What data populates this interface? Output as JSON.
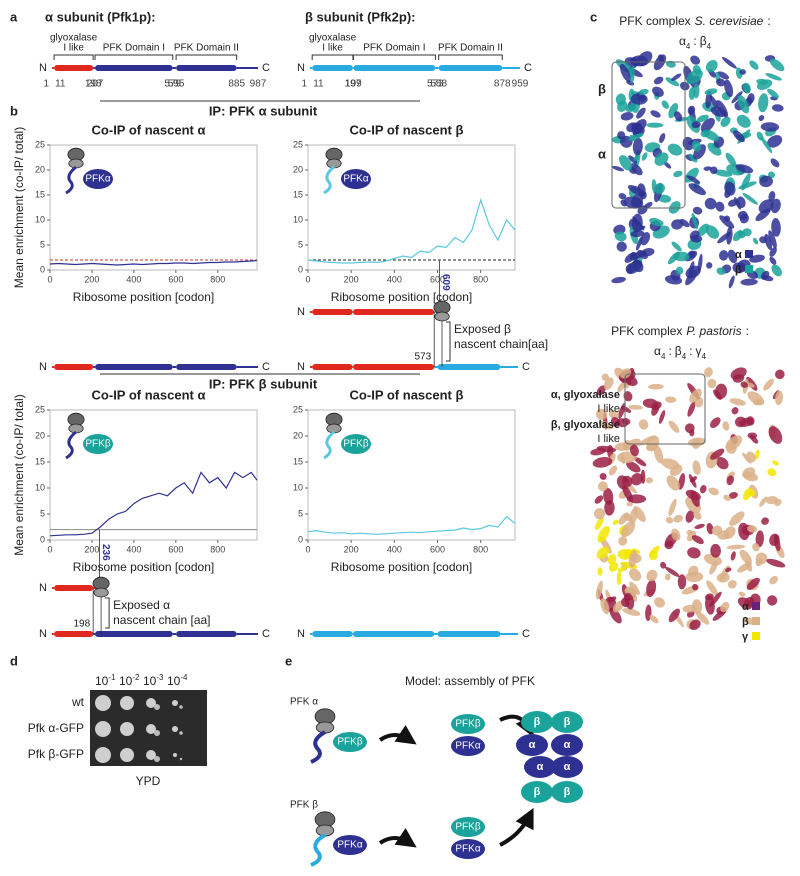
{
  "panel_labels": {
    "a": "a",
    "b": "b",
    "c": "c",
    "d": "d",
    "e": "e"
  },
  "subunits": [
    {
      "title": "α subunit (Pfk1p):",
      "N": "N",
      "C": "C",
      "domains": [
        [
          "glyoxalase",
          "I like"
        ],
        [
          "PFK Domain I"
        ],
        [
          "PFK Domain II"
        ]
      ],
      "positions": [
        1,
        11,
        198,
        207,
        579,
        595,
        885,
        987
      ],
      "colors": [
        "#e0281e",
        "#2e3192"
      ]
    },
    {
      "title": "β subunit (Pfk2p):",
      "N": "N",
      "C": "C",
      "domains": [
        [
          "glyoxalase",
          "I like"
        ],
        [
          "PFK Domain I"
        ],
        [
          "PFK Domain II"
        ]
      ],
      "positions": [
        1,
        11,
        197,
        199,
        573,
        588,
        878,
        959
      ],
      "colors": [
        "#29abe2",
        "#29abe2"
      ]
    }
  ],
  "ip_headers": [
    "IP: PFK α subunit",
    "IP: PFK β subunit"
  ],
  "chart_data": [
    {
      "type": "line",
      "title": "Co-IP of nascent α",
      "xlabel": "Ribosome position [codon]",
      "ylabel": "Mean enrichment (co-IP/ total)",
      "inset_label": "PFKα",
      "x": [
        0,
        40,
        80,
        120,
        160,
        200,
        240,
        280,
        320,
        360,
        400,
        440,
        480,
        520,
        560,
        600,
        640,
        680,
        720,
        760,
        800,
        840,
        880,
        920,
        960,
        987
      ],
      "series": [
        {
          "color": "#2e3192",
          "values": [
            1.2,
            1.3,
            1.2,
            1.1,
            1.2,
            1.3,
            1.2,
            1.1,
            1.0,
            1.1,
            1.2,
            1.1,
            1.2,
            1.3,
            1.3,
            1.4,
            1.4,
            1.3,
            1.4,
            1.5,
            1.5,
            1.6,
            1.6,
            1.7,
            1.8,
            1.9
          ]
        }
      ],
      "xlim": [
        0,
        987
      ],
      "ylim": [
        0,
        25
      ],
      "xticks": [
        0,
        200,
        400,
        600,
        800
      ],
      "yticks": [
        0,
        5,
        10,
        15,
        20,
        25
      ],
      "reference_line": {
        "value": 2,
        "color": "#c0392b",
        "dashed": true
      }
    },
    {
      "type": "line",
      "title": "Co-IP of nascent β",
      "xlabel": "Ribosome position [codon]",
      "inset_label": "PFKα",
      "x": [
        0,
        40,
        80,
        120,
        160,
        200,
        240,
        280,
        320,
        360,
        400,
        440,
        480,
        520,
        560,
        600,
        640,
        680,
        720,
        760,
        800,
        840,
        880,
        920,
        959
      ],
      "series": [
        {
          "color": "#5bc8e0",
          "values": [
            2,
            1.8,
            1.6,
            1.5,
            1.4,
            1.4,
            1.5,
            1.6,
            1.5,
            1.8,
            2.3,
            2.8,
            2.5,
            3.8,
            3.5,
            4.8,
            4.5,
            6.5,
            5.5,
            8,
            14,
            9,
            6,
            10,
            8
          ]
        }
      ],
      "xlim": [
        0,
        959
      ],
      "ylim": [
        0,
        25
      ],
      "xticks": [
        0,
        200,
        400,
        600,
        800
      ],
      "yticks": [
        0,
        5,
        10,
        15,
        20,
        25
      ],
      "reference_line": {
        "value": 2,
        "color": "#222222",
        "dashed": true
      },
      "annotation": 609
    },
    {
      "type": "line",
      "title": "Co-IP of nascent α",
      "xlabel": "Ribosome position [codon]",
      "ylabel": "Mean enrichment (co-IP/ total)",
      "inset_label": "PFKβ",
      "x": [
        0,
        40,
        80,
        120,
        160,
        200,
        240,
        280,
        320,
        360,
        400,
        440,
        480,
        520,
        560,
        600,
        640,
        680,
        720,
        760,
        800,
        840,
        880,
        920,
        960,
        987
      ],
      "series": [
        {
          "color": "#2e3192",
          "values": [
            0.8,
            0.9,
            1.0,
            1.0,
            1.1,
            1.3,
            2.5,
            4,
            5,
            5.5,
            7,
            8,
            8.5,
            9,
            8.5,
            10,
            11,
            9,
            13,
            11,
            12,
            10,
            13,
            12,
            13,
            11.5
          ]
        }
      ],
      "xlim": [
        0,
        987
      ],
      "ylim": [
        0,
        25
      ],
      "xticks": [
        0,
        200,
        400,
        600,
        800
      ],
      "yticks": [
        0,
        5,
        10,
        15,
        20,
        25
      ],
      "reference_line": {
        "value": 2,
        "color": "#888888",
        "dashed": false
      },
      "annotation": 236
    },
    {
      "type": "line",
      "title": "Co-IP of nascent β",
      "xlabel": "Ribosome position [codon]",
      "inset_label": "PFKβ",
      "x": [
        0,
        40,
        80,
        120,
        160,
        200,
        240,
        280,
        320,
        360,
        400,
        440,
        480,
        520,
        560,
        600,
        640,
        680,
        720,
        760,
        800,
        840,
        880,
        920,
        959
      ],
      "series": [
        {
          "color": "#5bc8e0",
          "values": [
            1.6,
            1.8,
            1.5,
            1.3,
            1.4,
            1.2,
            1.3,
            1.2,
            1.1,
            1.2,
            1.3,
            1.4,
            1.5,
            1.4,
            1.6,
            1.7,
            1.8,
            1.9,
            2.3,
            2.0,
            2.2,
            2.8,
            2.5,
            4.5,
            3.2
          ]
        }
      ],
      "xlim": [
        0,
        959
      ],
      "ylim": [
        0,
        25
      ],
      "xticks": [
        0,
        200,
        400,
        600,
        800
      ],
      "yticks": [
        0,
        5,
        10,
        15,
        20,
        25
      ]
    }
  ],
  "exposed": [
    {
      "lines": [
        "Exposed β",
        "nascent chain[aa]"
      ],
      "boundary": 573
    },
    {
      "lines": [
        "Exposed α",
        "nascent chain [aa]"
      ],
      "boundary": 198
    }
  ],
  "complexes": [
    {
      "prefix": "PFK complex",
      "species": "S. cerevisiae",
      "separator": ":",
      "stoichiometry": [
        [
          "α",
          4
        ],
        [
          "β",
          4
        ]
      ],
      "side_labels": [
        [
          "β"
        ],
        [
          "α"
        ]
      ],
      "legend": [
        "α",
        "β"
      ],
      "colors": [
        "#2e3192",
        "#1aa39a"
      ]
    },
    {
      "prefix": "PFK complex",
      "species": "P. pastoris",
      "separator": ":",
      "stoichiometry": [
        [
          "α",
          4
        ],
        [
          "β",
          4
        ],
        [
          "γ",
          4
        ]
      ],
      "side_labels": [
        [
          "α, glyoxalase",
          "I like"
        ],
        [
          "β, glyoxalase",
          "I like"
        ]
      ],
      "legend": [
        "α",
        "β",
        "γ"
      ],
      "colors": [
        "#9b2045",
        "#dbb088",
        "#f2e600"
      ]
    }
  ],
  "spot_assay": {
    "dilutions": [
      {
        "base": 10,
        "exp": -1
      },
      {
        "base": 10,
        "exp": -2
      },
      {
        "base": 10,
        "exp": -3
      },
      {
        "base": 10,
        "exp": -4
      }
    ],
    "strains": [
      "wt",
      "Pfk α-GFP",
      "Pfk β-GFP"
    ],
    "medium": "YPD"
  },
  "model": {
    "title": "Model: assembly of PFK",
    "rows": [
      {
        "label": "PFK α",
        "nascent_partner": "PFKβ",
        "pair": [
          "PFKβ",
          "PFKα"
        ]
      },
      {
        "label": "PFK β",
        "nascent_partner": "PFKα",
        "pair": [
          "PFKβ",
          "PFKα"
        ]
      }
    ],
    "complex": [
      "β",
      "β",
      "α",
      "α",
      "α",
      "α",
      "β",
      "β"
    ]
  }
}
